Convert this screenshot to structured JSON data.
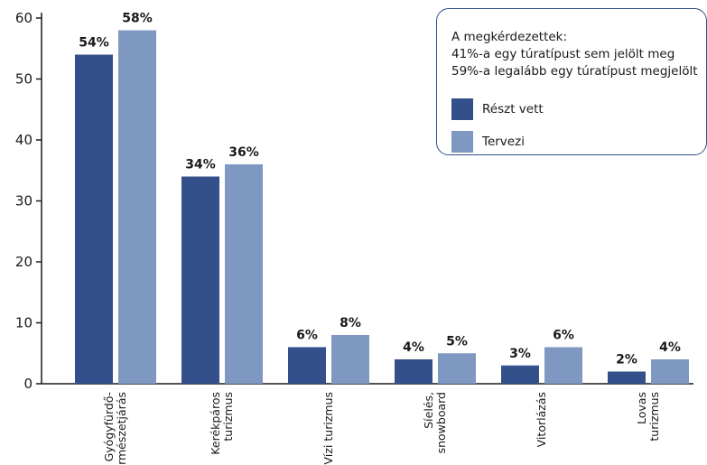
{
  "chart_data": {
    "type": "bar",
    "categories": [
      [
        "Gyógyfürdő-",
        "természetjárás"
      ],
      [
        "Kerékpáros",
        "turizmus"
      ],
      [
        "Vízi turizmus"
      ],
      [
        "Síelés,",
        "snowboard"
      ],
      [
        "Vitorlázás"
      ],
      [
        "Lovas",
        "turizmus"
      ]
    ],
    "series": [
      {
        "name": "Részt vett",
        "values": [
          54,
          34,
          6,
          4,
          3,
          2
        ],
        "labels": [
          "54%",
          "34%",
          "6%",
          "4%",
          "3%",
          "2%"
        ],
        "color": "#34508a"
      },
      {
        "name": "Tervezi",
        "values": [
          58,
          36,
          8,
          5,
          6,
          4
        ],
        "labels": [
          "58%",
          "36%",
          "8%",
          "5%",
          "6%",
          "4%"
        ],
        "color": "#7f98c2"
      }
    ],
    "yticks": [
      "0",
      "10",
      "20",
      "30",
      "40",
      "50",
      "60"
    ],
    "ylim": [
      0,
      60
    ],
    "title": "",
    "xlabel": "",
    "ylabel": "",
    "legend_position": "top-right",
    "grid": false
  },
  "legend": {
    "note_line1": "A megkérdezettek:",
    "note_line2": "41%-a egy túratípust sem jelölt meg",
    "note_line3": "59%-a legalább egy túratípust megjelölt"
  }
}
